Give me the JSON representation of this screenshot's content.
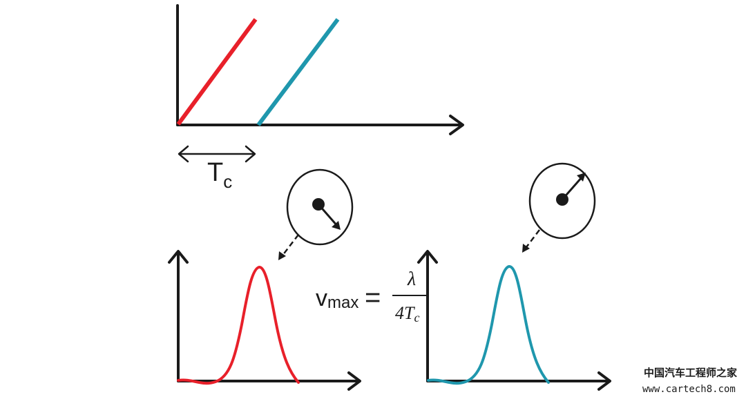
{
  "colors": {
    "axis": "#1a1a1a",
    "red": "#e8202a",
    "teal": "#1f97ad",
    "text": "#1a1a1a"
  },
  "delay_label": {
    "main": "T",
    "sub": "c"
  },
  "formula": {
    "lhs_main": "v",
    "lhs_sub": "max",
    "equals": "=",
    "numerator": "λ",
    "denominator": "4T",
    "denominator_sub": "c"
  },
  "watermark": {
    "line1": "中国汽车工程师之家",
    "line2": "www.cartech8.com"
  },
  "icons": {
    "left_rotation": "rotating-phasor-icon",
    "right_rotation": "rotating-phasor-icon"
  }
}
